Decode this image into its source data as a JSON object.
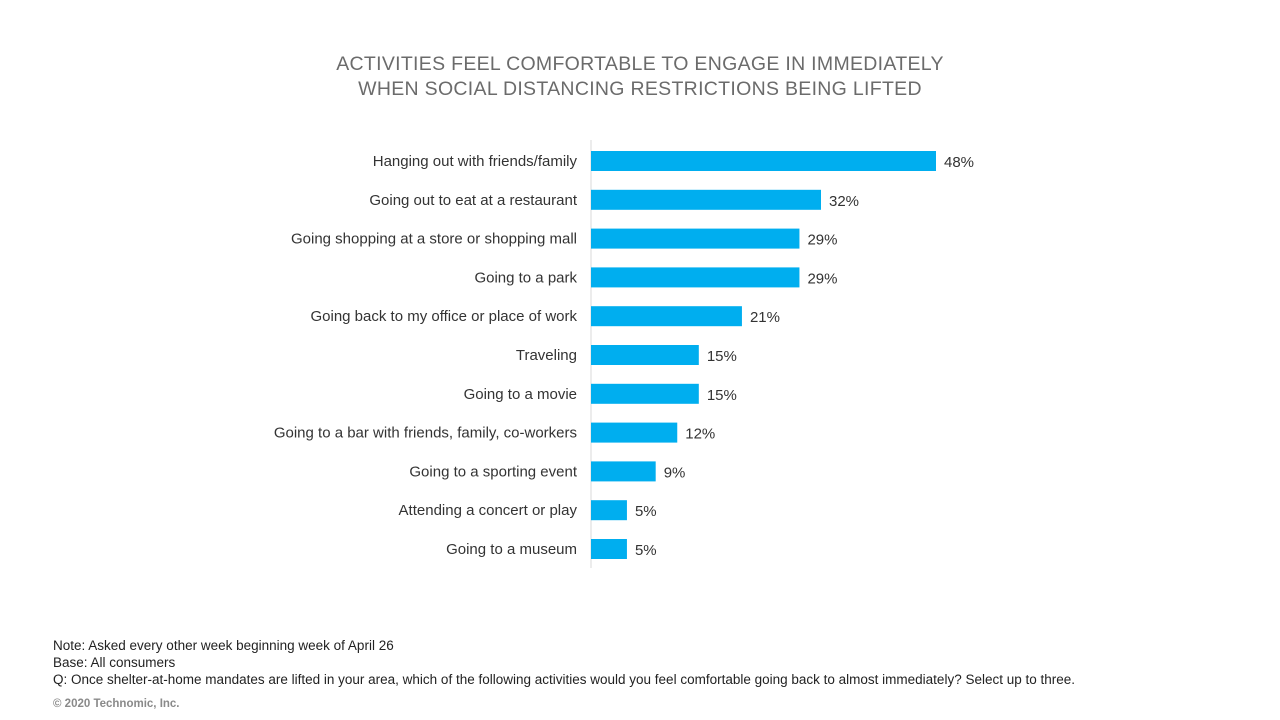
{
  "chart_data": {
    "type": "bar",
    "orientation": "horizontal",
    "title_lines": [
      "ACTIVITIES  FEEL COMFORTABLE  TO  ENGAGE  IN IMMEDIATELY",
      "WHEN SOCIAL DISTANCING  RESTRICTIONS  BEING LIFTED"
    ],
    "categories": [
      "Hanging out with friends/family",
      "Going out to eat at a restaurant",
      "Going shopping at a store or shopping mall",
      "Going to a park",
      "Going back to my office or place of work",
      "Traveling",
      "Going to a movie",
      "Going to a bar with friends, family, co-workers",
      "Going to a sporting event",
      "Attending a concert or play",
      "Going to a museum"
    ],
    "values": [
      48,
      32,
      29,
      29,
      21,
      15,
      15,
      12,
      9,
      5,
      5
    ],
    "value_labels": [
      "48%",
      "32%",
      "29%",
      "29%",
      "21%",
      "15%",
      "15%",
      "12%",
      "9%",
      "5%",
      "5%"
    ],
    "xlabel": "",
    "ylabel": "",
    "xlim": [
      0,
      48
    ],
    "grid": false,
    "bar_color": "#00aeef"
  },
  "notes": {
    "note": "Note: Asked every other week beginning week of April 26",
    "base": "Base: All consumers",
    "question": "Q: Once shelter-at-home mandates are lifted in your area, which of the following activities would you feel comfortable going back to almost immediately? Select up to three."
  },
  "copyright": "© 2020 Technomic, Inc."
}
